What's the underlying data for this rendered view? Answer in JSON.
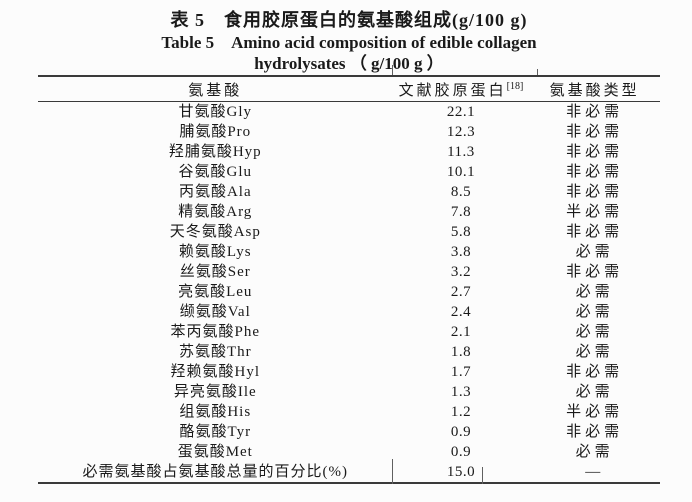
{
  "caption": {
    "zh": "表 5　食用胶原蛋白的氨基酸组成(g/100 g)",
    "en_line1": "Table 5　Amino acid composition of edible collagen",
    "en_line2": "hydrolysates （ g/100 g ）"
  },
  "table": {
    "columns": [
      {
        "label": "氨基酸",
        "superscript": ""
      },
      {
        "label": "文献胶原蛋白",
        "superscript": "[18]"
      },
      {
        "label": "氨基酸类型",
        "superscript": ""
      }
    ],
    "rows": [
      {
        "name": "甘氨酸Gly",
        "value": "22.1",
        "type": "非必需"
      },
      {
        "name": "脯氨酸Pro",
        "value": "12.3",
        "type": "非必需"
      },
      {
        "name": "羟脯氨酸Hyp",
        "value": "11.3",
        "type": "非必需"
      },
      {
        "name": "谷氨酸Glu",
        "value": "10.1",
        "type": "非必需"
      },
      {
        "name": "丙氨酸Ala",
        "value": "8.5",
        "type": "非必需"
      },
      {
        "name": "精氨酸Arg",
        "value": "7.8",
        "type": "半必需"
      },
      {
        "name": "天冬氨酸Asp",
        "value": "5.8",
        "type": "非必需"
      },
      {
        "name": "赖氨酸Lys",
        "value": "3.8",
        "type": "必需"
      },
      {
        "name": "丝氨酸Ser",
        "value": "3.2",
        "type": "非必需"
      },
      {
        "name": "亮氨酸Leu",
        "value": "2.7",
        "type": "必需"
      },
      {
        "name": "缬氨酸Val",
        "value": "2.4",
        "type": "必需"
      },
      {
        "name": "苯丙氨酸Phe",
        "value": "2.1",
        "type": "必需"
      },
      {
        "name": "苏氨酸Thr",
        "value": "1.8",
        "type": "必需"
      },
      {
        "name": "羟赖氨酸Hyl",
        "value": "1.7",
        "type": "非必需"
      },
      {
        "name": "异亮氨酸Ile",
        "value": "1.3",
        "type": "必需"
      },
      {
        "name": "组氨酸His",
        "value": "1.2",
        "type": "半必需"
      },
      {
        "name": "酪氨酸Tyr",
        "value": "0.9",
        "type": "非必需"
      },
      {
        "name": "蛋氨酸Met",
        "value": "0.9",
        "type": "必需"
      },
      {
        "name": "必需氨基酸占氨基酸总量的百分比(%)",
        "value": "15.0",
        "type": "—"
      }
    ]
  },
  "colors": {
    "background": "#fcfcfc",
    "text": "#1a1a1a",
    "rule": "#3a3a3a"
  }
}
